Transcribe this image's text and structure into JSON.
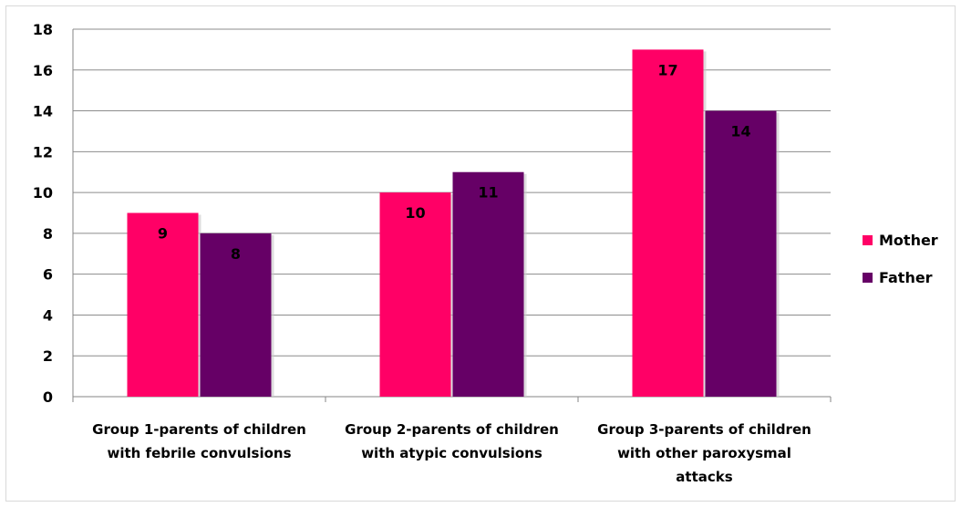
{
  "chart_data": {
    "type": "bar",
    "categories": [
      [
        "Group 1-parents of children",
        "with febrile convulsions"
      ],
      [
        "Group 2-parents of children",
        "with atypic convulsions"
      ],
      [
        "Group 3-parents of children",
        "with other paroxysmal",
        "attacks"
      ]
    ],
    "series": [
      {
        "name": "Mother",
        "values": [
          9,
          10,
          17
        ],
        "color": "#ff0066"
      },
      {
        "name": "Father",
        "values": [
          8,
          11,
          14
        ],
        "color": "#660066"
      }
    ],
    "ylim": [
      0,
      18
    ],
    "yticks": [
      0,
      2,
      4,
      6,
      8,
      10,
      12,
      14,
      16,
      18
    ],
    "grid": true,
    "data_labels": true,
    "legend": "right",
    "title": "",
    "xlabel": "",
    "ylabel": ""
  }
}
